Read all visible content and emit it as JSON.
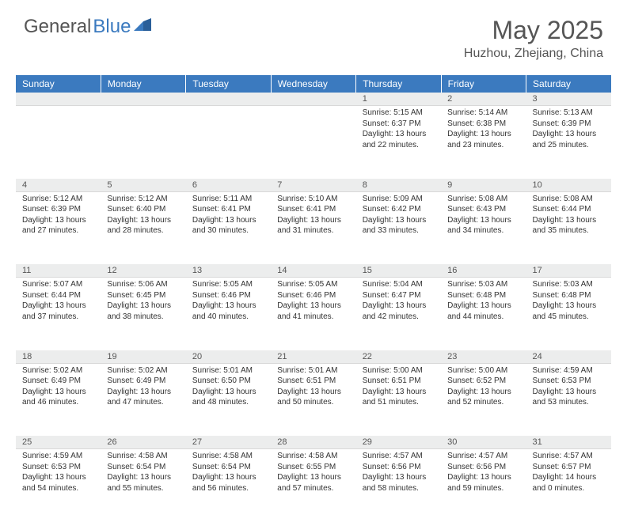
{
  "logo": {
    "text_general": "General",
    "text_blue": "Blue"
  },
  "title": "May 2025",
  "location": "Huzhou, Zhejiang, China",
  "colors": {
    "header_bg": "#3b7abf",
    "header_text": "#ffffff",
    "daynum_bg": "#eceded",
    "body_text": "#333333",
    "title_text": "#555555"
  },
  "weekdays": [
    "Sunday",
    "Monday",
    "Tuesday",
    "Wednesday",
    "Thursday",
    "Friday",
    "Saturday"
  ],
  "weeks": [
    [
      null,
      null,
      null,
      null,
      {
        "n": "1",
        "sr": "5:15 AM",
        "ss": "6:37 PM",
        "dl": "13 hours and 22 minutes."
      },
      {
        "n": "2",
        "sr": "5:14 AM",
        "ss": "6:38 PM",
        "dl": "13 hours and 23 minutes."
      },
      {
        "n": "3",
        "sr": "5:13 AM",
        "ss": "6:39 PM",
        "dl": "13 hours and 25 minutes."
      }
    ],
    [
      {
        "n": "4",
        "sr": "5:12 AM",
        "ss": "6:39 PM",
        "dl": "13 hours and 27 minutes."
      },
      {
        "n": "5",
        "sr": "5:12 AM",
        "ss": "6:40 PM",
        "dl": "13 hours and 28 minutes."
      },
      {
        "n": "6",
        "sr": "5:11 AM",
        "ss": "6:41 PM",
        "dl": "13 hours and 30 minutes."
      },
      {
        "n": "7",
        "sr": "5:10 AM",
        "ss": "6:41 PM",
        "dl": "13 hours and 31 minutes."
      },
      {
        "n": "8",
        "sr": "5:09 AM",
        "ss": "6:42 PM",
        "dl": "13 hours and 33 minutes."
      },
      {
        "n": "9",
        "sr": "5:08 AM",
        "ss": "6:43 PM",
        "dl": "13 hours and 34 minutes."
      },
      {
        "n": "10",
        "sr": "5:08 AM",
        "ss": "6:44 PM",
        "dl": "13 hours and 35 minutes."
      }
    ],
    [
      {
        "n": "11",
        "sr": "5:07 AM",
        "ss": "6:44 PM",
        "dl": "13 hours and 37 minutes."
      },
      {
        "n": "12",
        "sr": "5:06 AM",
        "ss": "6:45 PM",
        "dl": "13 hours and 38 minutes."
      },
      {
        "n": "13",
        "sr": "5:05 AM",
        "ss": "6:46 PM",
        "dl": "13 hours and 40 minutes."
      },
      {
        "n": "14",
        "sr": "5:05 AM",
        "ss": "6:46 PM",
        "dl": "13 hours and 41 minutes."
      },
      {
        "n": "15",
        "sr": "5:04 AM",
        "ss": "6:47 PM",
        "dl": "13 hours and 42 minutes."
      },
      {
        "n": "16",
        "sr": "5:03 AM",
        "ss": "6:48 PM",
        "dl": "13 hours and 44 minutes."
      },
      {
        "n": "17",
        "sr": "5:03 AM",
        "ss": "6:48 PM",
        "dl": "13 hours and 45 minutes."
      }
    ],
    [
      {
        "n": "18",
        "sr": "5:02 AM",
        "ss": "6:49 PM",
        "dl": "13 hours and 46 minutes."
      },
      {
        "n": "19",
        "sr": "5:02 AM",
        "ss": "6:49 PM",
        "dl": "13 hours and 47 minutes."
      },
      {
        "n": "20",
        "sr": "5:01 AM",
        "ss": "6:50 PM",
        "dl": "13 hours and 48 minutes."
      },
      {
        "n": "21",
        "sr": "5:01 AM",
        "ss": "6:51 PM",
        "dl": "13 hours and 50 minutes."
      },
      {
        "n": "22",
        "sr": "5:00 AM",
        "ss": "6:51 PM",
        "dl": "13 hours and 51 minutes."
      },
      {
        "n": "23",
        "sr": "5:00 AM",
        "ss": "6:52 PM",
        "dl": "13 hours and 52 minutes."
      },
      {
        "n": "24",
        "sr": "4:59 AM",
        "ss": "6:53 PM",
        "dl": "13 hours and 53 minutes."
      }
    ],
    [
      {
        "n": "25",
        "sr": "4:59 AM",
        "ss": "6:53 PM",
        "dl": "13 hours and 54 minutes."
      },
      {
        "n": "26",
        "sr": "4:58 AM",
        "ss": "6:54 PM",
        "dl": "13 hours and 55 minutes."
      },
      {
        "n": "27",
        "sr": "4:58 AM",
        "ss": "6:54 PM",
        "dl": "13 hours and 56 minutes."
      },
      {
        "n": "28",
        "sr": "4:58 AM",
        "ss": "6:55 PM",
        "dl": "13 hours and 57 minutes."
      },
      {
        "n": "29",
        "sr": "4:57 AM",
        "ss": "6:56 PM",
        "dl": "13 hours and 58 minutes."
      },
      {
        "n": "30",
        "sr": "4:57 AM",
        "ss": "6:56 PM",
        "dl": "13 hours and 59 minutes."
      },
      {
        "n": "31",
        "sr": "4:57 AM",
        "ss": "6:57 PM",
        "dl": "14 hours and 0 minutes."
      }
    ]
  ],
  "labels": {
    "sunrise": "Sunrise:",
    "sunset": "Sunset:",
    "daylight": "Daylight:"
  }
}
